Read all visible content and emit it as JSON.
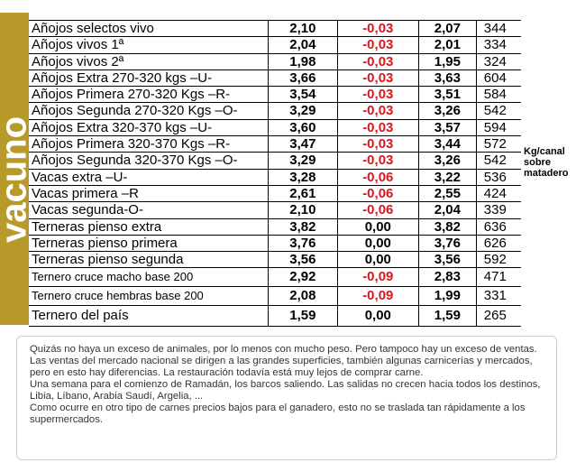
{
  "side_label": "vacuno",
  "unit_note": "Kg/canal sobre matadero",
  "table": {
    "rows": [
      [
        "Añojos selectos vivo",
        "2,10",
        "-0,03",
        "2,07",
        "344"
      ],
      [
        "Añojos vivos 1ª",
        "2,04",
        "-0,03",
        "2,01",
        "334"
      ],
      [
        "Añojos vivos 2ª",
        "1,98",
        "-0,03",
        "1,95",
        "324"
      ],
      [
        "Añojos Extra 270-320 kgs –U-",
        "3,66",
        "-0,03",
        "3,63",
        "604"
      ],
      [
        "Añojos Primera 270-320 Kgs –R-",
        "3,54",
        "-0,03",
        "3,51",
        "584"
      ],
      [
        "Añojos Segunda 270-320 Kgs –O-",
        "3,29",
        "-0,03",
        "3,26",
        "542"
      ],
      [
        "Añojos Extra 320-370 kgs –U-",
        "3,60",
        "-0,03",
        "3,57",
        "594"
      ],
      [
        "Añojos Primera 320-370 Kgs –R-",
        "3,47",
        "-0,03",
        "3,44",
        "572"
      ],
      [
        "Añojos Segunda 320-370 Kgs –O-",
        "3,29",
        "-0,03",
        "3,26",
        "542"
      ],
      [
        "Vacas extra –U-",
        "3,28",
        "-0,06",
        "3,22",
        "536"
      ],
      [
        "Vacas primera –R",
        "2,61",
        "-0,06",
        "2,55",
        "424"
      ],
      [
        "Vacas segunda-O-",
        "2,10",
        "-0,06",
        "2,04",
        "339"
      ],
      [
        "Terneras pienso extra",
        "3,82",
        "0,00",
        "3,82",
        "636"
      ],
      [
        "Terneras pienso primera",
        "3,76",
        "0,00",
        "3,76",
        "626"
      ],
      [
        "Terneras pienso segunda",
        "3,56",
        "0,00",
        "3,56",
        "592"
      ],
      [
        "Ternero cruce macho base 200",
        "2,92",
        "-0,09",
        "2,83",
        "471"
      ],
      [
        "Ternero cruce hembras base 200",
        "2,08",
        "-0,09",
        "1,99",
        "331"
      ],
      [
        "Ternero del país",
        "1,59",
        "0,00",
        "1,59",
        "265"
      ]
    ]
  },
  "notes": [
    "Quizás no haya un exceso de animales, por lo menos con mucho peso. Pero tampoco hay un exceso de ventas.",
    "Las ventas del mercado nacional se dirigen a las grandes superficies, también algunas carnicerías y mercados, pero en esto hay diferencias. La restauración todavía está muy lejos de comprar carne.",
    "Una semana para el comienzo de Ramadán, los barcos saliendo. Las salidas no crecen hacia todos los destinos, Libia, Líbano, Arabia Saudí, Argelia, ...",
    "Como ocurre en otro tipo de carnes precios bajos para el ganadero, esto no se traslada tan rápidamente a los supermercados."
  ]
}
